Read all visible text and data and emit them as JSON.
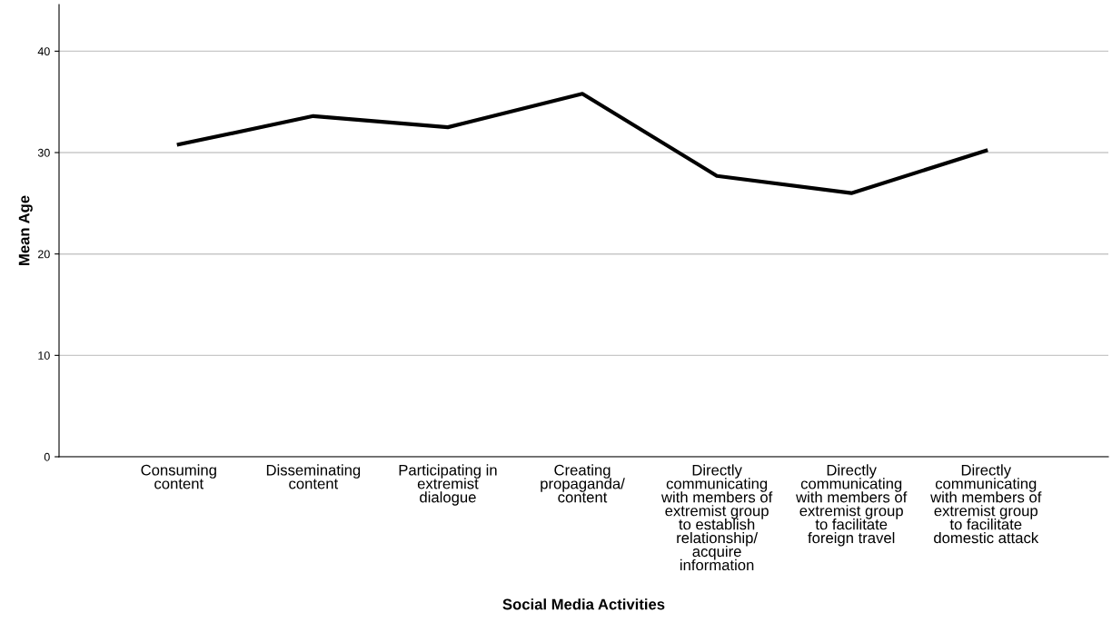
{
  "chart_data": {
    "type": "line",
    "xlabel": "Social Media Activities",
    "ylabel": "Mean Age",
    "categories": [
      "Consuming\ncontent",
      "Disseminating\ncontent",
      "Participating in\nextremist\ndialogue",
      "Creating\npropaganda/\ncontent",
      "Directly\ncommunicating\nwith members of\nextremist group\nto establish\nrelationship/\nacquire\ninformation",
      "Directly\ncommunicating\nwith members of\nextremist group\nto facilitate\nforeign travel",
      "Directly\ncommunicating\nwith members of\nextremist group\nto facilitate\ndomestic attack"
    ],
    "series": [
      {
        "color": "#000000",
        "values": [
          30.8,
          33.6,
          32.5,
          35.8,
          27.7,
          26.0,
          30.2
        ]
      }
    ],
    "ylim": [
      0,
      44.6
    ],
    "yticks": [
      0,
      10,
      20,
      30,
      40
    ],
    "grid": "y",
    "marker": "none",
    "line_style": "solid"
  }
}
